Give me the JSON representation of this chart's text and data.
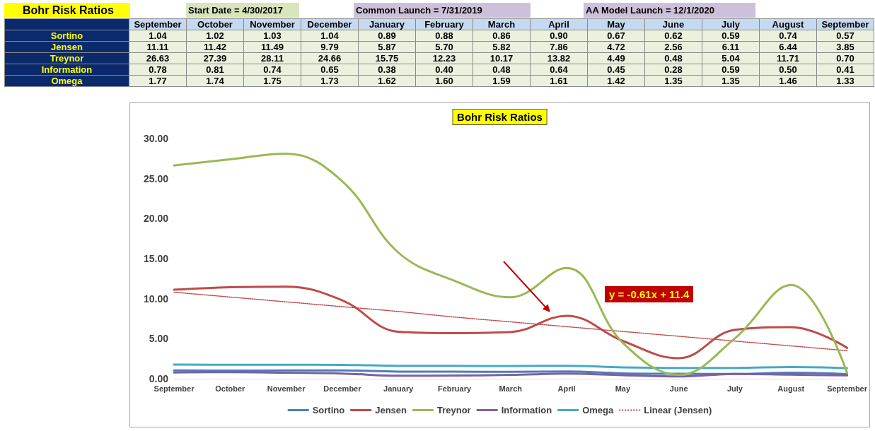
{
  "chart_data": {
    "type": "line",
    "title": "Bohr Risk Ratios",
    "categories": [
      "September",
      "October",
      "November",
      "December",
      "January",
      "February",
      "March",
      "April",
      "May",
      "June",
      "July",
      "August",
      "September"
    ],
    "series": [
      {
        "name": "Sortino",
        "color": "#4a7ebb",
        "values": [
          1.04,
          1.02,
          1.03,
          1.04,
          0.89,
          0.88,
          0.86,
          0.9,
          0.67,
          0.62,
          0.59,
          0.74,
          0.57
        ],
        "value_labels": [
          "1.04",
          "1.02",
          "1.03",
          "1.04",
          "0.89",
          "0.88",
          "0.86",
          "0.90",
          "0.67",
          "0.62",
          "0.59",
          "0.74",
          "0.57"
        ]
      },
      {
        "name": "Jensen",
        "color": "#be4b48",
        "values": [
          11.11,
          11.42,
          11.49,
          9.79,
          5.87,
          5.7,
          5.82,
          7.86,
          4.72,
          2.56,
          6.11,
          6.44,
          3.85
        ],
        "value_labels": [
          "11.11",
          "11.42",
          "11.49",
          "9.79",
          "5.87",
          "5.70",
          "5.82",
          "7.86",
          "4.72",
          "2.56",
          "6.11",
          "6.44",
          "3.85"
        ]
      },
      {
        "name": "Treynor",
        "color": "#98b954",
        "values": [
          26.63,
          27.39,
          28.11,
          24.66,
          15.75,
          12.23,
          10.17,
          13.82,
          4.49,
          0.48,
          5.04,
          11.71,
          0.7
        ],
        "value_labels": [
          "26.63",
          "27.39",
          "28.11",
          "24.66",
          "15.75",
          "12.23",
          "10.17",
          "13.82",
          "4.49",
          "0.48",
          "5.04",
          "11.71",
          "0.70"
        ]
      },
      {
        "name": "Information",
        "color": "#7d60a0",
        "values": [
          0.78,
          0.81,
          0.74,
          0.65,
          0.38,
          0.4,
          0.48,
          0.64,
          0.45,
          0.28,
          0.59,
          0.5,
          0.41
        ],
        "value_labels": [
          "0.78",
          "0.81",
          "0.74",
          "0.65",
          "0.38",
          "0.40",
          "0.48",
          "0.64",
          "0.45",
          "0.28",
          "0.59",
          "0.50",
          "0.41"
        ]
      },
      {
        "name": "Omega",
        "color": "#46aac5",
        "values": [
          1.77,
          1.74,
          1.75,
          1.73,
          1.62,
          1.6,
          1.59,
          1.61,
          1.42,
          1.35,
          1.35,
          1.46,
          1.33
        ],
        "value_labels": [
          "1.77",
          "1.74",
          "1.75",
          "1.73",
          "1.62",
          "1.60",
          "1.59",
          "1.61",
          "1.42",
          "1.35",
          "1.35",
          "1.46",
          "1.33"
        ]
      },
      {
        "name": "Linear (Jensen)",
        "color": "#be4b48",
        "line_style": "dotted",
        "values": [
          10.8,
          10.2,
          9.6,
          9.0,
          8.4,
          7.7,
          7.1,
          6.5,
          5.9,
          5.3,
          4.7,
          4.1,
          3.5
        ]
      }
    ],
    "ylim": [
      0,
      30
    ],
    "yticks": [
      {
        "value": 0,
        "label": "0.00"
      },
      {
        "value": 5,
        "label": "5.00"
      },
      {
        "value": 10,
        "label": "10.00"
      },
      {
        "value": 15,
        "label": "15.00"
      },
      {
        "value": 20,
        "label": "20.00"
      },
      {
        "value": 25,
        "label": "25.00"
      },
      {
        "value": 30,
        "label": "30.00"
      }
    ],
    "grid": false,
    "legend": "bottom",
    "marker": "none",
    "line_style": "solid",
    "annotations": [
      "Bohr Risk Ratios",
      "Start Date = 4/30/2017",
      "Common Launch = 7/31/2019",
      "AA Model Launch = 12/1/2020",
      "y = -0.61x + 11.4"
    ]
  }
}
